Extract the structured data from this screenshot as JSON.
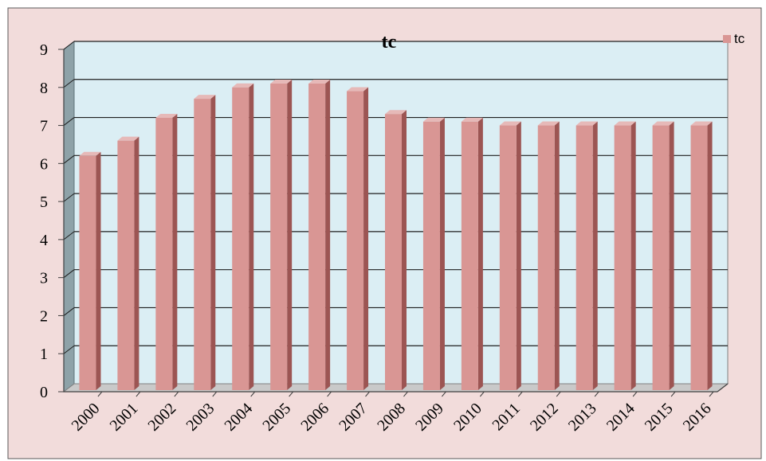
{
  "chart_data": {
    "type": "bar",
    "title": "tc",
    "categories": [
      "2000",
      "2001",
      "2002",
      "2003",
      "2004",
      "2005",
      "2006",
      "2007",
      "2008",
      "2009",
      "2010",
      "2011",
      "2012",
      "2013",
      "2014",
      "2015",
      "2016"
    ],
    "series": [
      {
        "name": "tc",
        "values": [
          6.2,
          6.6,
          7.2,
          7.7,
          8.0,
          8.1,
          8.1,
          7.9,
          7.3,
          7.1,
          7.1,
          7.0,
          7.0,
          7.0,
          7.0,
          7.0,
          7.0
        ]
      }
    ],
    "ylim": [
      0,
      9
    ],
    "yticks": [
      "0",
      "1",
      "2",
      "3",
      "4",
      "5",
      "6",
      "7",
      "8",
      "9"
    ],
    "legend_position": "top-right",
    "grid": true,
    "colors": {
      "background": "#f2dcdb",
      "plot_area": "#dbeef4",
      "bar_front": "#d99694",
      "bar_side": "#9c5553",
      "bar_top": "#e6b9b8",
      "border": "#595959"
    }
  }
}
